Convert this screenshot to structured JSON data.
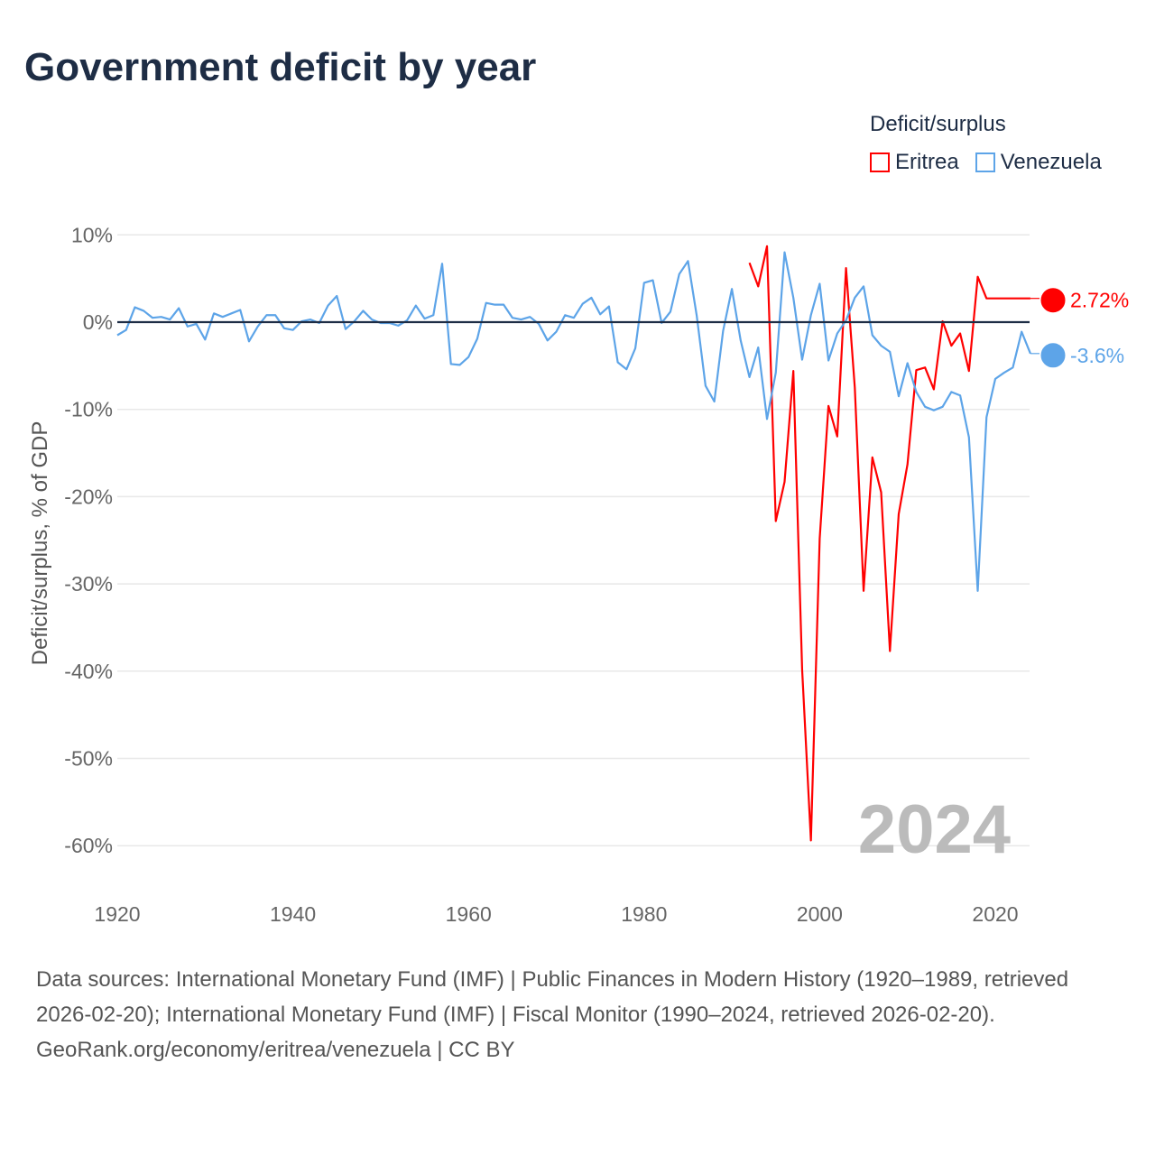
{
  "title": "Government deficit by year",
  "legend": {
    "title": "Deficit/surplus",
    "items": [
      {
        "name": "Eritrea",
        "color": "#ff0000"
      },
      {
        "name": "Venezuela",
        "color": "#5da4e8"
      }
    ]
  },
  "year_label": "2024",
  "source": {
    "text": "Data sources: International Monetary Fund (IMF) | Public Finances in Modern History (1920–1989, retrieved 2026-02-20); International Monetary Fund (IMF) | Fiscal Monitor (1990–2024, retrieved 2026-02-20).",
    "link": "GeoRank.org/economy/eritrea/venezuela | CC BY"
  },
  "chart_data": {
    "type": "line",
    "title": "Government deficit by year",
    "xlabel": "",
    "ylabel": "Deficit/surplus, % of GDP",
    "xlim": [
      1920,
      2024
    ],
    "ylim": [
      -65,
      10
    ],
    "xticks": [
      1920,
      1940,
      1960,
      1980,
      2000,
      2020
    ],
    "yticks": [
      10,
      0,
      -10,
      -20,
      -30,
      -40,
      -50,
      -60
    ],
    "ytick_labels": [
      "10%",
      "0%",
      "-10%",
      "-20%",
      "-30%",
      "-40%",
      "-50%",
      "-60%"
    ],
    "end_labels": {
      "Eritrea": "2.72%",
      "Venezuela": "-3.6%"
    },
    "series": [
      {
        "name": "Eritrea",
        "color": "#ff0000",
        "start_year": 1992,
        "values": [
          6.8,
          4.1,
          8.7,
          -22.8,
          -18.3,
          -5.6,
          -39.8,
          -59.4,
          -24.8,
          -9.6,
          -13.1,
          6.2,
          -7.5,
          -30.8,
          -15.5,
          -19.5,
          -37.7,
          -22.0,
          -16.3,
          -5.5,
          -5.2,
          -7.7,
          0.1,
          -2.7,
          -1.3,
          -5.6,
          5.2,
          2.72,
          2.72,
          2.72,
          2.72,
          2.72,
          2.72
        ]
      },
      {
        "name": "Venezuela",
        "color": "#5da4e8",
        "start_year": 1920,
        "values": [
          -1.5,
          -0.9,
          1.7,
          1.3,
          0.5,
          0.6,
          0.3,
          1.6,
          -0.5,
          -0.2,
          -2.0,
          1.0,
          0.6,
          1.0,
          1.4,
          -2.2,
          -0.5,
          0.8,
          0.8,
          -0.7,
          -0.9,
          0.1,
          0.3,
          -0.1,
          1.9,
          3.0,
          -0.8,
          0.1,
          1.3,
          0.3,
          -0.1,
          -0.1,
          -0.4,
          0.2,
          1.9,
          0.4,
          0.8,
          6.7,
          -4.8,
          -4.9,
          -4.0,
          -1.9,
          2.2,
          2.0,
          2.0,
          0.5,
          0.3,
          0.6,
          -0.2,
          -2.1,
          -1.1,
          0.8,
          0.5,
          2.1,
          2.8,
          0.9,
          1.8,
          -4.6,
          -5.4,
          -3.0,
          4.5,
          4.8,
          -0.1,
          1.2,
          5.5,
          7.0,
          0.7,
          -7.3,
          -9.1,
          -1.0,
          3.8,
          -2.1,
          -6.3,
          -2.9,
          -11.1,
          -5.8,
          8.0,
          2.8,
          -4.3,
          0.8,
          4.4,
          -4.4,
          -1.3,
          0.2,
          2.8,
          4.1,
          -1.5,
          -2.7,
          -3.4,
          -8.5,
          -4.7,
          -8.0,
          -9.7,
          -10.1,
          -9.7,
          -8.0,
          -8.4,
          -13.2,
          -30.8,
          -10.9,
          -6.5,
          -5.8,
          -5.2,
          -1.1,
          -3.6
        ]
      }
    ]
  }
}
